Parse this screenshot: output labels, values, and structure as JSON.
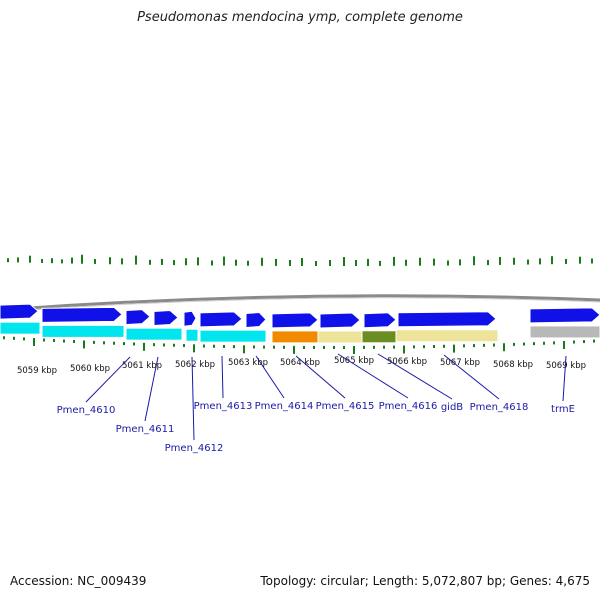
{
  "title": "Pseudomonas mendocina ymp, complete genome",
  "footer": {
    "accession": "Accession: NC_009439",
    "summary": "Topology: circular; Length: 5,072,807 bp; Genes: 4,675"
  },
  "colors": {
    "forward_gene": "#1010e8",
    "reverse_gene": "#00e5ee",
    "orange_feature": "#f28a00",
    "pale_feature": "#ede49a",
    "dark_feature": "#6b8e23",
    "gray_feature": "#b8b8b8",
    "tick": "#1a7a1a",
    "label": "#1a1aa8"
  },
  "kbp_ticks": [
    "5059 kbp",
    "5060 kbp",
    "5061 kbp",
    "5062 kbp",
    "5063 kbp",
    "5064 kbp",
    "5065 kbp",
    "5066 kbp",
    "5067 kbp",
    "5068 kbp",
    "5069 kbp"
  ],
  "gene_labels": [
    "Pmen_4610",
    "Pmen_4611",
    "Pmen_4612",
    "Pmen_4613",
    "Pmen_4614",
    "Pmen_4615",
    "Pmen_4616",
    "gidB",
    "Pmen_4618",
    "trmE"
  ]
}
